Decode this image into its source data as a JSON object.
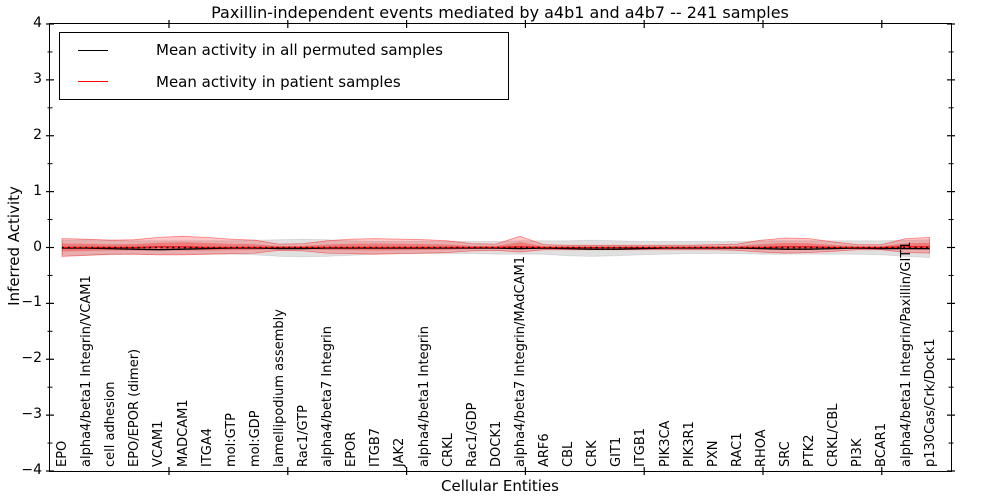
{
  "title": "Paxillin-independent events mediated by a4b1 and a4b7 -- 241 samples",
  "legend": {
    "items": [
      {
        "label": "Mean activity in all permuted samples",
        "color": "#000000"
      },
      {
        "label": "Mean activity in patient samples",
        "color": "#ff0000"
      }
    ]
  },
  "axes": {
    "xlabel": "Cellular Entities",
    "ylabel": "Inferred Activity",
    "ytick_labels": [
      "4",
      "3",
      "2",
      "1",
      "0",
      "−1",
      "−2",
      "−3",
      "−4"
    ],
    "ytick_values": [
      4,
      3,
      2,
      1,
      0,
      -1,
      -2,
      -3,
      -4
    ]
  },
  "colors": {
    "permuted_line": "#000000",
    "patient_line": "#ff0000",
    "permuted_band": "rgba(0,0,0,0.12)",
    "patient_band_outer": "rgba(255,0,0,0.22)",
    "patient_band_inner": "rgba(255,0,0,0.30)",
    "frame": "#000000"
  },
  "chart_data": {
    "type": "line",
    "title": "Paxillin-independent events mediated by a4b1 and a4b7 -- 241 samples",
    "xlabel": "Cellular Entities",
    "ylabel": "Inferred Activity",
    "ylim": [
      -4,
      4
    ],
    "grid": false,
    "legend_position": "upper left",
    "categories": [
      "EPO",
      "alpha4/beta1 Integrin/VCAM1",
      "cell adhesion",
      "EPO/EPOR (dimer)",
      "VCAM1",
      "MADCAM1",
      "ITGA4",
      "mol:GTP",
      "mol:GDP",
      "lamellipodium assembly",
      "Rac1/GTP",
      "alpha4/beta7 Integrin",
      "EPOR",
      "ITGB7",
      "JAK2",
      "alpha4/beta1 Integrin",
      "CRKL",
      "Rac1/GDP",
      "DOCK1",
      "alpha4/beta7 Integrin/MAdCAM1",
      "ARF6",
      "CBL",
      "CRK",
      "GIT1",
      "ITGB1",
      "PIK3CA",
      "PIK3R1",
      "PXN",
      "RAC1",
      "RHOA",
      "SRC",
      "PTK2",
      "CRKL/CBL",
      "PI3K",
      "BCAR1",
      "alpha4/beta1 Integrin/Paxillin/GIT1",
      "p130Cas/Crk/Dock1"
    ],
    "series": [
      {
        "name": "Mean activity in all permuted samples",
        "color": "#000000",
        "values": [
          -0.01,
          -0.01,
          -0.02,
          -0.03,
          -0.04,
          -0.03,
          -0.02,
          -0.01,
          -0.01,
          -0.02,
          -0.02,
          -0.01,
          -0.01,
          -0.01,
          -0.01,
          -0.01,
          -0.01,
          -0.01,
          -0.01,
          -0.02,
          -0.01,
          -0.02,
          -0.03,
          -0.03,
          -0.02,
          -0.01,
          -0.01,
          -0.01,
          -0.01,
          -0.02,
          -0.03,
          -0.03,
          -0.02,
          -0.01,
          -0.02,
          -0.02,
          -0.02
        ],
        "band_upper": [
          0.13,
          0.14,
          0.13,
          0.12,
          0.12,
          0.12,
          0.12,
          0.12,
          0.13,
          0.14,
          0.15,
          0.14,
          0.12,
          0.11,
          0.11,
          0.11,
          0.11,
          0.11,
          0.11,
          0.12,
          0.12,
          0.12,
          0.13,
          0.12,
          0.11,
          0.11,
          0.11,
          0.11,
          0.11,
          0.12,
          0.12,
          0.12,
          0.12,
          0.12,
          0.12,
          0.13,
          0.14
        ],
        "band_lower": [
          -0.14,
          -0.14,
          -0.13,
          -0.12,
          -0.12,
          -0.12,
          -0.12,
          -0.12,
          -0.13,
          -0.16,
          -0.17,
          -0.16,
          -0.14,
          -0.12,
          -0.11,
          -0.11,
          -0.11,
          -0.11,
          -0.12,
          -0.12,
          -0.12,
          -0.15,
          -0.16,
          -0.15,
          -0.13,
          -0.12,
          -0.11,
          -0.11,
          -0.11,
          -0.12,
          -0.12,
          -0.12,
          -0.12,
          -0.12,
          -0.13,
          -0.16,
          -0.18
        ]
      },
      {
        "name": "Mean activity in patient samples",
        "color": "#ff0000",
        "values": [
          0,
          0,
          0,
          0,
          0.01,
          0.01,
          0,
          0,
          0,
          0,
          0,
          0,
          0,
          0,
          0,
          0,
          0,
          0,
          0,
          0.01,
          0,
          0,
          0,
          0,
          0,
          0,
          0,
          0,
          0,
          0,
          0.01,
          0.01,
          0,
          0,
          0,
          0.01,
          0.01
        ],
        "band_upper": [
          0.16,
          0.15,
          0.13,
          0.14,
          0.18,
          0.2,
          0.18,
          0.15,
          0.13,
          0.06,
          0.07,
          0.12,
          0.15,
          0.16,
          0.15,
          0.14,
          0.12,
          0.07,
          0.06,
          0.2,
          0.05,
          0.04,
          0.04,
          0.04,
          0.04,
          0.04,
          0.04,
          0.05,
          0.06,
          0.13,
          0.17,
          0.16,
          0.1,
          0.05,
          0.05,
          0.16,
          0.18
        ],
        "band_lower": [
          -0.16,
          -0.14,
          -0.12,
          -0.12,
          -0.13,
          -0.13,
          -0.12,
          -0.11,
          -0.1,
          -0.05,
          -0.06,
          -0.1,
          -0.11,
          -0.12,
          -0.11,
          -0.1,
          -0.09,
          -0.06,
          -0.05,
          -0.08,
          -0.04,
          -0.04,
          -0.04,
          -0.04,
          -0.04,
          -0.04,
          -0.04,
          -0.04,
          -0.05,
          -0.08,
          -0.1,
          -0.09,
          -0.07,
          -0.04,
          -0.04,
          -0.09,
          -0.1
        ]
      }
    ],
    "zero_reference_line": 0
  }
}
